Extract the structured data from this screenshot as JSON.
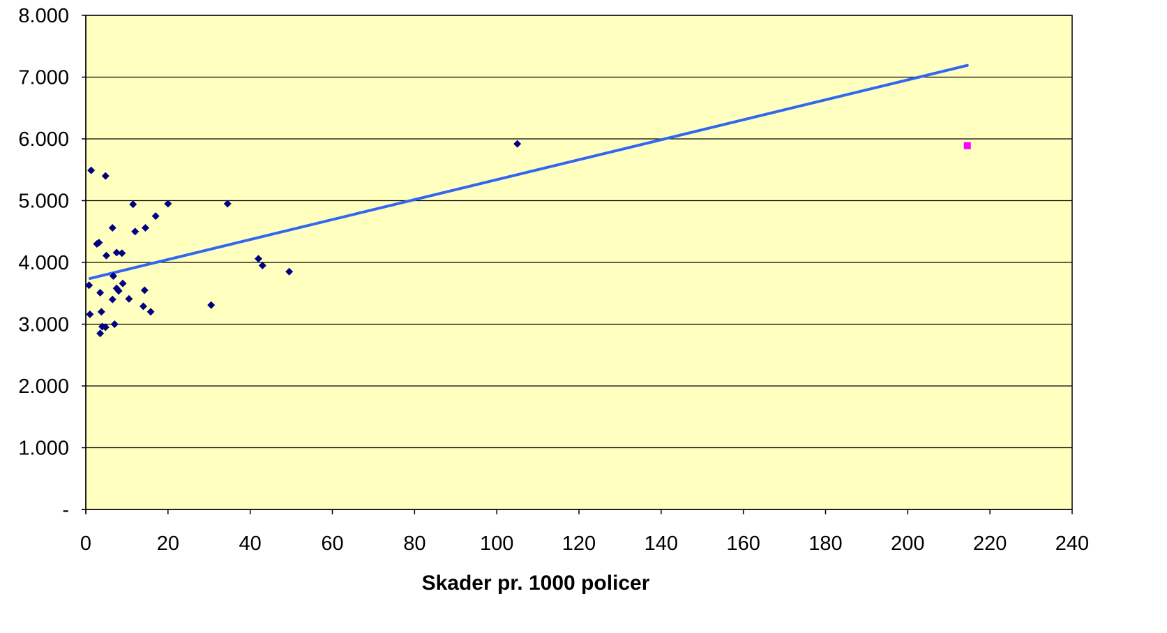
{
  "chart_data": {
    "type": "scatter",
    "title": "",
    "xlabel": "Skader pr. 1000 policer",
    "ylabel": "",
    "xlim": [
      0,
      240
    ],
    "ylim": [
      0,
      8000
    ],
    "x_ticks": [
      0,
      20,
      40,
      60,
      80,
      100,
      120,
      140,
      160,
      180,
      200,
      220,
      240
    ],
    "x_tick_labels": [
      "0",
      "20",
      "40",
      "60",
      "80",
      "100",
      "120",
      "140",
      "160",
      "180",
      "200",
      "220",
      "240"
    ],
    "y_ticks": [
      0,
      1000,
      2000,
      3000,
      4000,
      5000,
      6000,
      7000,
      8000
    ],
    "y_tick_labels": [
      "-",
      "1.000",
      "2.000",
      "3.000",
      "4.000",
      "5.000",
      "6.000",
      "7.000",
      "8.000"
    ],
    "grid": "horizontal",
    "legend": "none",
    "series": [
      {
        "marker": "diamond",
        "color": "#000080",
        "points": [
          [
            1.3,
            5490
          ],
          [
            4.8,
            5400
          ],
          [
            2.7,
            4300
          ],
          [
            3.2,
            4320
          ],
          [
            5.0,
            4110
          ],
          [
            6.5,
            4560
          ],
          [
            7.5,
            4160
          ],
          [
            8.8,
            4150
          ],
          [
            11.5,
            4940
          ],
          [
            12.0,
            4500
          ],
          [
            14.5,
            4560
          ],
          [
            17.0,
            4750
          ],
          [
            20.0,
            4950
          ],
          [
            34.5,
            4950
          ],
          [
            105.0,
            5920
          ],
          [
            0.8,
            3630
          ],
          [
            1.0,
            3160
          ],
          [
            3.5,
            3510
          ],
          [
            3.8,
            3200
          ],
          [
            6.7,
            3780
          ],
          [
            7.5,
            3580
          ],
          [
            8.0,
            3540
          ],
          [
            9.0,
            3660
          ],
          [
            6.5,
            3400
          ],
          [
            10.5,
            3410
          ],
          [
            14.3,
            3550
          ],
          [
            14.0,
            3290
          ],
          [
            15.8,
            3200
          ],
          [
            3.5,
            2850
          ],
          [
            4.0,
            2960
          ],
          [
            4.8,
            2950
          ],
          [
            7.0,
            3000
          ],
          [
            30.5,
            3310
          ],
          [
            42.0,
            4060
          ],
          [
            43.0,
            3950
          ],
          [
            49.5,
            3850
          ]
        ]
      },
      {
        "marker": "square",
        "color": "#ff00ff",
        "points": [
          [
            214.5,
            5890
          ]
        ]
      }
    ],
    "trendline": {
      "color": "#3366ee",
      "x": [
        1,
        214.5
      ],
      "y": [
        3740,
        7190
      ]
    },
    "colors": {
      "plot_background": "#ffffc0",
      "gridline": "#000000",
      "axis": "#000000"
    }
  }
}
